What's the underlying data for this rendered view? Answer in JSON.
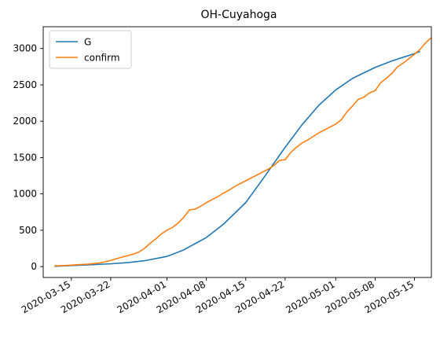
{
  "chart_data": {
    "type": "line",
    "title": "OH-Cuyahoga",
    "xlabel": "",
    "ylabel": "",
    "x_axis": {
      "type": "date",
      "range": [
        "2020-03-10",
        "2020-05-18"
      ],
      "tick_labels": [
        "2020-03-15",
        "2020-03-22",
        "2020-04-01",
        "2020-04-08",
        "2020-04-15",
        "2020-04-22",
        "2020-05-01",
        "2020-05-08",
        "2020-05-15"
      ]
    },
    "y_axis": {
      "range": [
        -150,
        3300
      ],
      "ticks": [
        0,
        500,
        1000,
        1500,
        2000,
        2500,
        3000
      ]
    },
    "grid": false,
    "legend": {
      "position": "top-left",
      "entries": [
        "G",
        "confirm"
      ]
    },
    "series": [
      {
        "name": "G",
        "color": "#1f77b4",
        "points": [
          [
            "2020-03-12",
            3
          ],
          [
            "2020-03-15",
            14
          ],
          [
            "2020-03-18",
            24
          ],
          [
            "2020-03-22",
            38
          ],
          [
            "2020-03-25",
            55
          ],
          [
            "2020-03-28",
            80
          ],
          [
            "2020-04-01",
            140
          ],
          [
            "2020-04-04",
            230
          ],
          [
            "2020-04-08",
            400
          ],
          [
            "2020-04-11",
            580
          ],
          [
            "2020-04-15",
            880
          ],
          [
            "2020-04-18",
            1200
          ],
          [
            "2020-04-22",
            1640
          ],
          [
            "2020-04-25",
            1950
          ],
          [
            "2020-04-28",
            2220
          ],
          [
            "2020-05-01",
            2430
          ],
          [
            "2020-05-04",
            2590
          ],
          [
            "2020-05-08",
            2740
          ],
          [
            "2020-05-11",
            2830
          ],
          [
            "2020-05-15",
            2930
          ],
          [
            "2020-05-16",
            2960
          ]
        ]
      },
      {
        "name": "confirm",
        "color": "#ff7f0e",
        "points": [
          [
            "2020-03-12",
            10
          ],
          [
            "2020-03-14",
            14
          ],
          [
            "2020-03-16",
            25
          ],
          [
            "2020-03-18",
            33
          ],
          [
            "2020-03-20",
            50
          ],
          [
            "2020-03-21",
            65
          ],
          [
            "2020-03-22",
            85
          ],
          [
            "2020-03-24",
            130
          ],
          [
            "2020-03-25",
            150
          ],
          [
            "2020-03-26",
            170
          ],
          [
            "2020-03-27",
            200
          ],
          [
            "2020-03-28",
            250
          ],
          [
            "2020-03-29",
            320
          ],
          [
            "2020-03-30",
            380
          ],
          [
            "2020-03-31",
            450
          ],
          [
            "2020-04-01",
            500
          ],
          [
            "2020-04-02",
            540
          ],
          [
            "2020-04-03",
            600
          ],
          [
            "2020-04-04",
            680
          ],
          [
            "2020-04-05",
            780
          ],
          [
            "2020-04-06",
            790
          ],
          [
            "2020-04-07",
            830
          ],
          [
            "2020-04-08",
            880
          ],
          [
            "2020-04-09",
            920
          ],
          [
            "2020-04-10",
            960
          ],
          [
            "2020-04-11",
            1010
          ],
          [
            "2020-04-12",
            1050
          ],
          [
            "2020-04-13",
            1100
          ],
          [
            "2020-04-14",
            1140
          ],
          [
            "2020-04-15",
            1180
          ],
          [
            "2020-04-16",
            1220
          ],
          [
            "2020-04-17",
            1260
          ],
          [
            "2020-04-18",
            1300
          ],
          [
            "2020-04-19",
            1340
          ],
          [
            "2020-04-20",
            1390
          ],
          [
            "2020-04-21",
            1460
          ],
          [
            "2020-04-22",
            1470
          ],
          [
            "2020-04-23",
            1570
          ],
          [
            "2020-04-24",
            1640
          ],
          [
            "2020-04-25",
            1700
          ],
          [
            "2020-04-26",
            1740
          ],
          [
            "2020-04-27",
            1790
          ],
          [
            "2020-04-28",
            1840
          ],
          [
            "2020-04-29",
            1880
          ],
          [
            "2020-04-30",
            1920
          ],
          [
            "2020-05-01",
            1960
          ],
          [
            "2020-05-02",
            2020
          ],
          [
            "2020-05-03",
            2130
          ],
          [
            "2020-05-04",
            2210
          ],
          [
            "2020-05-05",
            2300
          ],
          [
            "2020-05-06",
            2330
          ],
          [
            "2020-05-07",
            2390
          ],
          [
            "2020-05-08",
            2420
          ],
          [
            "2020-05-09",
            2530
          ],
          [
            "2020-05-10",
            2590
          ],
          [
            "2020-05-11",
            2660
          ],
          [
            "2020-05-12",
            2750
          ],
          [
            "2020-05-13",
            2800
          ],
          [
            "2020-05-14",
            2860
          ],
          [
            "2020-05-15",
            2920
          ],
          [
            "2020-05-16",
            2990
          ],
          [
            "2020-05-17",
            3080
          ],
          [
            "2020-05-18",
            3150
          ]
        ]
      }
    ]
  }
}
